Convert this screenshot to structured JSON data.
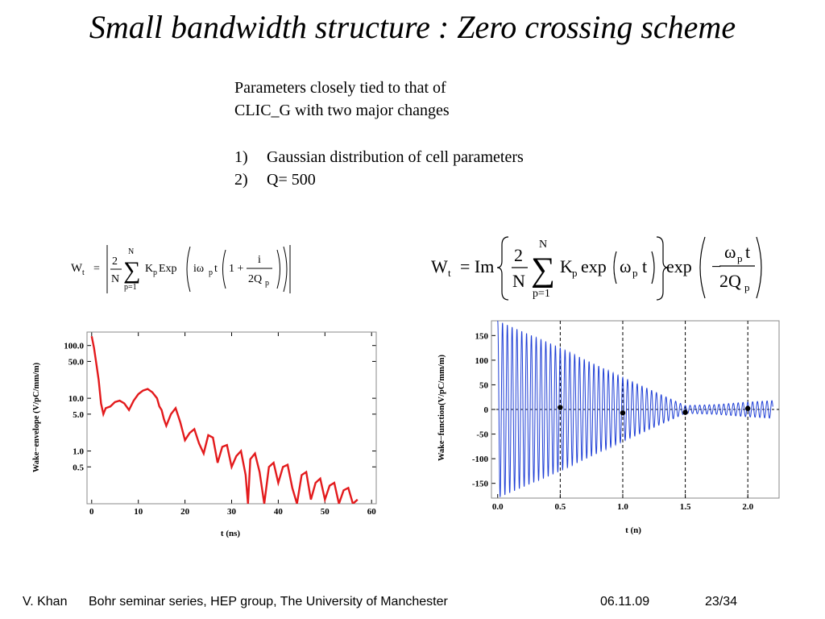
{
  "title": "Small bandwidth structure : Zero crossing scheme",
  "params": {
    "intro_line1": "Parameters closely tied to that of",
    "intro_line2": "CLIC_G with two major changes",
    "items": [
      {
        "num": "1)",
        "text": "Gaussian distribution of cell parameters"
      },
      {
        "num": "2)",
        "text": "Q= 500"
      }
    ]
  },
  "equations": {
    "left": {
      "lhs": "W",
      "lhs_sub": "t",
      "eq": "=",
      "frac_num": "2",
      "frac_den": "N",
      "sum_top": "N",
      "sum_bottom": "p=1",
      "k": "K",
      "k_sub": "p",
      "fn": "Exp",
      "arg": "iω",
      "arg_sub": "p",
      "t": "t",
      "one_plus": "1 +",
      "inner_num": "i",
      "inner_den": "2Q",
      "inner_den_sub": "p"
    },
    "right": {
      "lhs": "W",
      "lhs_sub": "t",
      "eq": "= Im",
      "frac_num": "2",
      "frac_den": "N",
      "sum_top": "N",
      "sum_bottom": "p=1",
      "k": "K",
      "k_sub": "p",
      "fn1": "exp",
      "omega": "ω",
      "omega_sub": "p",
      "t": "t",
      "fn2": "exp",
      "minus": "−",
      "damp_num": "ω",
      "damp_num_sub": "p",
      "damp_num_t": "t",
      "damp_den": "2Q",
      "damp_den_sub": "p"
    }
  },
  "chart_data": [
    {
      "type": "line",
      "title": "",
      "xlabel": "t (ns)",
      "ylabel": "Wake−envelope (V/pC/mm/m)",
      "xlim": [
        -1,
        61
      ],
      "ylim": [
        0.1,
        180
      ],
      "yscale": "log",
      "xticks": [
        0,
        10,
        20,
        30,
        40,
        50,
        60
      ],
      "yticks": [
        {
          "value": 100,
          "label": "100.0"
        },
        {
          "value": 50,
          "label": "50.0"
        },
        {
          "value": 10,
          "label": "10.0"
        },
        {
          "value": 5,
          "label": "5.0"
        },
        {
          "value": 1,
          "label": "1.0"
        },
        {
          "value": 0.5,
          "label": "0.5"
        }
      ],
      "color": "#e31a1c",
      "series": [
        {
          "x": [
            0,
            0.5,
            1,
            1.5,
            2,
            2.5,
            3,
            4,
            5,
            6,
            7,
            8,
            9,
            10,
            11,
            12,
            13,
            14,
            14.5,
            15,
            15.5,
            16,
            17,
            18,
            19,
            20,
            21,
            22,
            23,
            24,
            25,
            26,
            27,
            28,
            29,
            30,
            31,
            32,
            33,
            33.5,
            34,
            35,
            36,
            37,
            38,
            39,
            40,
            41,
            42,
            43,
            44,
            45,
            46,
            47,
            48,
            49,
            50,
            51,
            52,
            53,
            54,
            55,
            56,
            57
          ],
          "y": [
            150,
            90,
            45,
            22,
            8,
            5,
            6.5,
            7,
            8.5,
            9,
            8,
            6,
            9,
            12,
            14,
            15,
            13,
            10,
            7,
            6,
            4,
            3,
            5,
            6.5,
            3.5,
            1.6,
            2.2,
            2.6,
            1.4,
            0.9,
            2.0,
            1.8,
            0.6,
            1.2,
            1.3,
            0.5,
            0.8,
            1.0,
            0.35,
            0.1,
            0.7,
            0.9,
            0.4,
            0.1,
            0.5,
            0.6,
            0.25,
            0.5,
            0.55,
            0.2,
            0.1,
            0.35,
            0.4,
            0.12,
            0.25,
            0.3,
            0.12,
            0.22,
            0.25,
            0.1,
            0.18,
            0.2,
            0.1,
            0.12
          ]
        }
      ]
    },
    {
      "type": "line",
      "title": "",
      "xlabel": "t (n)",
      "ylabel": "Wake−function(V/pC/mm/m)",
      "xlim": [
        -0.05,
        2.25
      ],
      "ylim": [
        -180,
        180
      ],
      "xticks": [
        {
          "value": 0,
          "label": "0.0"
        },
        {
          "value": 0.5,
          "label": "0.5"
        },
        {
          "value": 1,
          "label": "1.0"
        },
        {
          "value": 1.5,
          "label": "1.5"
        },
        {
          "value": 2,
          "label": "2.0"
        }
      ],
      "yticks": [
        150,
        100,
        50,
        0,
        -50,
        -100,
        -150
      ],
      "color": "#1f3fd6",
      "oscillation": {
        "cycles_per_unit": 26,
        "envelope": [
          {
            "t": 0,
            "a": 180
          },
          {
            "t": 0.5,
            "a": 125
          },
          {
            "t": 1.0,
            "a": 65
          },
          {
            "t": 1.5,
            "a": 8
          },
          {
            "t": 1.75,
            "a": 10
          },
          {
            "t": 2.0,
            "a": 15
          },
          {
            "t": 2.2,
            "a": 18
          }
        ]
      },
      "dashed_vlines": [
        0.5,
        1.0,
        1.5,
        2.0
      ],
      "zero_crossing_points": [
        {
          "x": 0.5,
          "y": 4
        },
        {
          "x": 1.0,
          "y": -7
        },
        {
          "x": 1.5,
          "y": -6
        },
        {
          "x": 2.0,
          "y": 2
        }
      ]
    }
  ],
  "footer": {
    "author": "V. Khan",
    "series": "Bohr seminar series,  HEP group, The University of Manchester",
    "date": "06.11.09",
    "page": "23/34"
  }
}
